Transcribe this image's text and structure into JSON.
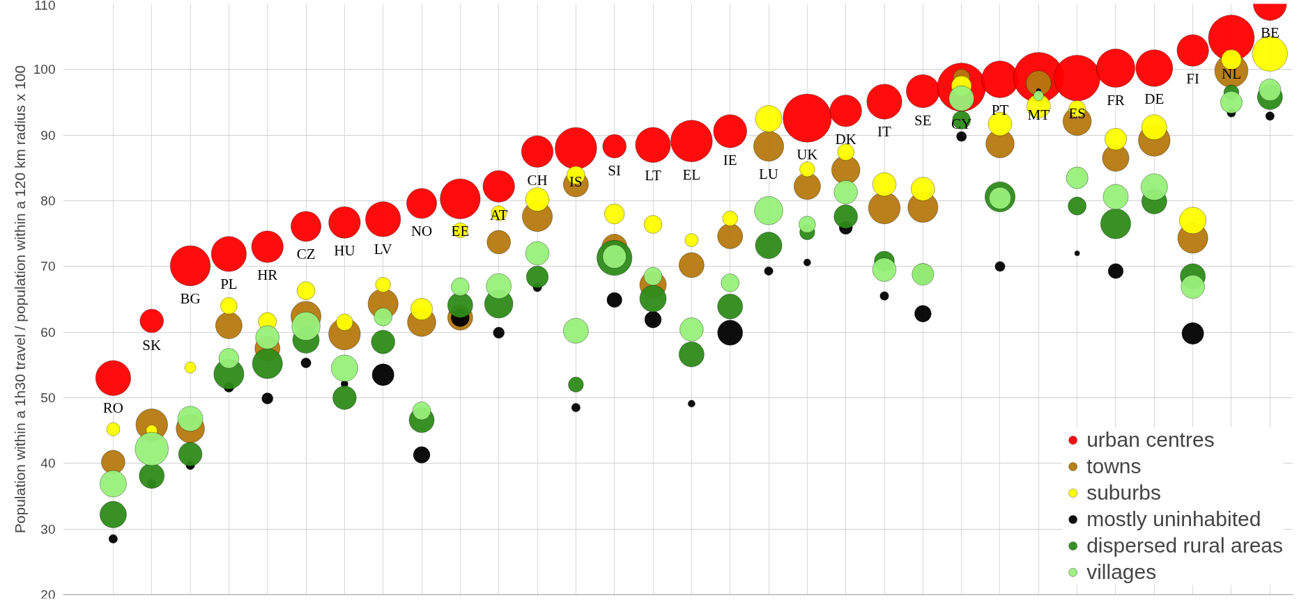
{
  "chart_data": {
    "type": "bubble",
    "ylabel": "Population within a 1h30 travel / population within a 120 km radius x 100",
    "categories": [
      "RO",
      "SK",
      "BG",
      "PL",
      "HR",
      "CZ",
      "HU",
      "LV",
      "NO",
      "EE",
      "AT",
      "CH",
      "IS",
      "SI",
      "LT",
      "EL",
      "IE",
      "LU",
      "UK",
      "DK",
      "IT",
      "SE",
      "CY",
      "PT",
      "MT",
      "ES",
      "FR",
      "DE",
      "FI",
      "NL",
      "BE"
    ],
    "series": [
      {
        "name": "urban centres",
        "color": "#ff0000",
        "values": [
          53.0,
          61.7,
          70.1,
          71.9,
          73.0,
          76.1,
          76.7,
          77.2,
          79.6,
          80.3,
          82.2,
          87.5,
          88.0,
          88.3,
          88.5,
          89.1,
          90.6,
          null,
          92.6,
          93.7,
          95.1,
          96.7,
          97.3,
          98.5,
          98.8,
          98.7,
          100.2,
          100.2,
          102.9,
          104.8,
          110.0
        ],
        "sizes": [
          0.49,
          0.22,
          0.64,
          0.49,
          0.4,
          0.36,
          0.4,
          0.49,
          0.36,
          0.64,
          0.4,
          0.4,
          0.69,
          0.22,
          0.49,
          0.69,
          0.44,
          null,
          0.93,
          0.4,
          0.49,
          0.44,
          0.93,
          0.54,
          1,
          0.84,
          0.59,
          0.54,
          0.4,
          0.84,
          0.44
        ]
      },
      {
        "name": "towns",
        "color": "#b5790f",
        "values": [
          40.2,
          45.9,
          45.3,
          61.0,
          57.5,
          62.4,
          59.7,
          64.3,
          61.5,
          62.2,
          73.7,
          77.6,
          82.5,
          73.0,
          67.2,
          70.2,
          74.6,
          88.3,
          82.2,
          84.7,
          78.9,
          79.0,
          98.8,
          88.7,
          97.9,
          92.1,
          86.5,
          89.2,
          74.3,
          99.8,
          null
        ],
        "sizes": [
          0.22,
          0.4,
          0.32,
          0.28,
          0.25,
          0.36,
          0.4,
          0.36,
          0.32,
          0.25,
          0.22,
          0.36,
          0.25,
          0.25,
          0.28,
          0.25,
          0.25,
          0.36,
          0.28,
          0.32,
          0.4,
          0.36,
          0.11,
          0.32,
          0.25,
          0.32,
          0.28,
          0.4,
          0.36,
          0.44,
          null
        ]
      },
      {
        "name": "suburbs",
        "color": "#ffff00",
        "values": [
          45.2,
          45.0,
          54.6,
          64.0,
          61.6,
          66.3,
          61.5,
          67.2,
          63.5,
          75.5,
          78.1,
          80.2,
          83.9,
          78.0,
          76.4,
          74.0,
          77.3,
          92.5,
          84.8,
          87.4,
          82.5,
          81.8,
          97.5,
          91.7,
          94.4,
          94.0,
          89.4,
          91.2,
          77.0,
          101.5,
          102.4
        ],
        "sizes": [
          0.07,
          0.05,
          0.05,
          0.11,
          0.13,
          0.13,
          0.11,
          0.09,
          0.19,
          0.09,
          0.09,
          0.22,
          0.13,
          0.16,
          0.13,
          0.07,
          0.09,
          0.28,
          0.09,
          0.11,
          0.22,
          0.22,
          0.16,
          0.22,
          0.22,
          0.11,
          0.19,
          0.25,
          0.28,
          0.16,
          0.49
        ]
      },
      {
        "name": "mostly uninhabited",
        "color": "#000000",
        "values": [
          28.5,
          36.9,
          39.7,
          51.6,
          49.9,
          55.3,
          52.1,
          53.5,
          41.3,
          62.2,
          59.9,
          66.8,
          48.5,
          64.9,
          61.9,
          49.1,
          59.9,
          69.3,
          70.6,
          75.9,
          65.5,
          62.8,
          89.8,
          70.0,
          96.7,
          72.0,
          69.3,
          null,
          59.8,
          93.4,
          92.9
        ],
        "sizes": [
          0.03,
          0.03,
          0.03,
          0.04,
          0.05,
          0.04,
          0.02,
          0.19,
          0.11,
          0.13,
          0.05,
          0.03,
          0.03,
          0.09,
          0.11,
          0.02,
          0.25,
          0.03,
          0.02,
          0.07,
          0.03,
          0.11,
          0.04,
          0.04,
          0.01,
          0.01,
          0.09,
          null,
          0.19,
          0.03,
          0.03
        ]
      },
      {
        "name": "dispersed rural areas",
        "color": "#2e8b1a",
        "values": [
          32.2,
          38.1,
          41.4,
          53.6,
          55.2,
          58.8,
          50.0,
          58.5,
          46.6,
          64.1,
          64.3,
          68.4,
          52.0,
          71.3,
          65.1,
          56.6,
          63.9,
          73.2,
          75.2,
          77.6,
          70.8,
          68.9,
          92.3,
          80.6,
          null,
          79.2,
          76.5,
          79.9,
          68.5,
          96.5,
          95.8
        ],
        "sizes": [
          0.28,
          0.25,
          0.22,
          0.36,
          0.36,
          0.28,
          0.22,
          0.22,
          0.25,
          0.25,
          0.32,
          0.19,
          0.09,
          0.49,
          0.28,
          0.25,
          0.25,
          0.28,
          0.09,
          0.22,
          0.16,
          0.16,
          0.13,
          0.36,
          null,
          0.13,
          0.36,
          0.25,
          0.25,
          0.09,
          0.25
        ]
      },
      {
        "name": "villages",
        "color": "#98f07a",
        "values": [
          36.9,
          42.2,
          46.8,
          56.0,
          59.2,
          60.9,
          54.5,
          62.3,
          48.0,
          66.9,
          67.0,
          72.0,
          60.2,
          71.5,
          68.5,
          60.4,
          67.5,
          78.5,
          76.4,
          81.3,
          69.5,
          68.8,
          95.6,
          80.4,
          96.0,
          83.5,
          80.6,
          82.1,
          66.9,
          95.0,
          96.9
        ],
        "sizes": [
          0.28,
          0.44,
          0.25,
          0.16,
          0.22,
          0.32,
          0.28,
          0.13,
          0.13,
          0.13,
          0.25,
          0.22,
          0.25,
          0.22,
          0.13,
          0.22,
          0.13,
          0.32,
          0.11,
          0.22,
          0.22,
          0.19,
          0.25,
          0.19,
          0.04,
          0.19,
          0.25,
          0.28,
          0.22,
          0.19,
          0.19
        ]
      }
    ],
    "ylim": [
      20,
      110
    ],
    "yticks": [
      20,
      30,
      40,
      50,
      60,
      70,
      80,
      90,
      100,
      110
    ],
    "grid": true,
    "legend": "bottom right",
    "tick_labels": "y"
  }
}
